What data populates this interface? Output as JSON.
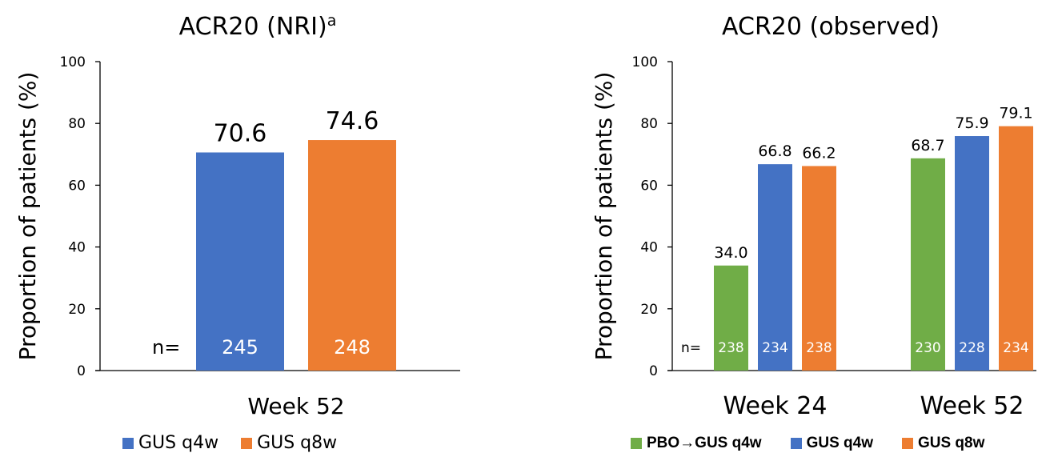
{
  "colors": {
    "green": "#70AD47",
    "blue": "#4472C4",
    "orange": "#ED7D31"
  },
  "chart_data": [
    {
      "type": "bar",
      "title": "ACR20 (NRI)",
      "title_superscript": "a",
      "ylabel": "Proportion of patients (%)",
      "ylim": [
        0,
        100
      ],
      "yticks": [
        "0",
        "20",
        "40",
        "60",
        "80",
        "100"
      ],
      "n_label": "n=",
      "groups": [
        {
          "label": "Week 52",
          "bars": [
            {
              "series": "GUS q4w",
              "value": 70.6,
              "value_label": "70.6",
              "n": "245"
            },
            {
              "series": "GUS q8w",
              "value": 74.6,
              "value_label": "74.6",
              "n": "248"
            }
          ]
        }
      ],
      "legend": [
        {
          "label": "GUS q4w",
          "color": "#4472C4"
        },
        {
          "label": "GUS q8w",
          "color": "#ED7D31"
        }
      ]
    },
    {
      "type": "bar",
      "title": "ACR20 (observed)",
      "ylabel": "Proportion of patients (%)",
      "ylim": [
        0,
        100
      ],
      "yticks": [
        "0",
        "20",
        "40",
        "60",
        "80",
        "100"
      ],
      "n_label": "n=",
      "groups": [
        {
          "label": "Week 24",
          "bars": [
            {
              "series": "PBO→GUS q4w",
              "value": 34.0,
              "value_label": "34.0",
              "n": "238"
            },
            {
              "series": "GUS q4w",
              "value": 66.8,
              "value_label": "66.8",
              "n": "234"
            },
            {
              "series": "GUS q8w",
              "value": 66.2,
              "value_label": "66.2",
              "n": "238"
            }
          ]
        },
        {
          "label": "Week 52",
          "bars": [
            {
              "series": "PBO→GUS q4w",
              "value": 68.7,
              "value_label": "68.7",
              "n": "230"
            },
            {
              "series": "GUS q4w",
              "value": 75.9,
              "value_label": "75.9",
              "n": "228"
            },
            {
              "series": "GUS q8w",
              "value": 79.1,
              "value_label": "79.1",
              "n": "234"
            }
          ]
        }
      ],
      "legend": [
        {
          "label": "PBO→GUS q4w",
          "color": "#70AD47"
        },
        {
          "label": "GUS q4w",
          "color": "#4472C4"
        },
        {
          "label": "GUS q8w",
          "color": "#ED7D31"
        }
      ]
    }
  ]
}
